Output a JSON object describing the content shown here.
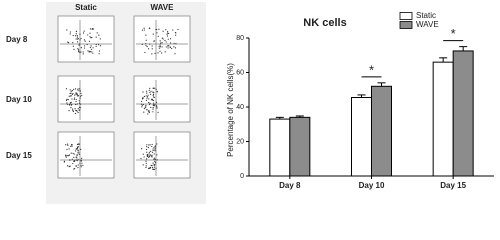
{
  "panels": {
    "columns": [
      "Static",
      "WAVE"
    ],
    "rows": [
      "Day 8",
      "Day 10",
      "Day 15"
    ]
  },
  "chart_data": {
    "type": "bar",
    "title": "NK cells",
    "y_label": "Percentage of NK cells(%)",
    "categories": [
      "Day 8",
      "Day 10",
      "Day 15"
    ],
    "series": [
      {
        "name": "Static",
        "color": "#ffffff",
        "values": [
          33,
          45.5,
          66
        ],
        "errors": [
          1,
          1.5,
          2.5
        ]
      },
      {
        "name": "WAVE",
        "color": "#8c8c8c",
        "values": [
          34,
          52,
          72.5
        ],
        "errors": [
          0.8,
          2,
          2.5
        ]
      }
    ],
    "ylim": [
      0,
      80
    ],
    "yticks": [
      0,
      20,
      40,
      60,
      80
    ],
    "annotations": [
      "*",
      "*"
    ],
    "legend": "upper right"
  }
}
